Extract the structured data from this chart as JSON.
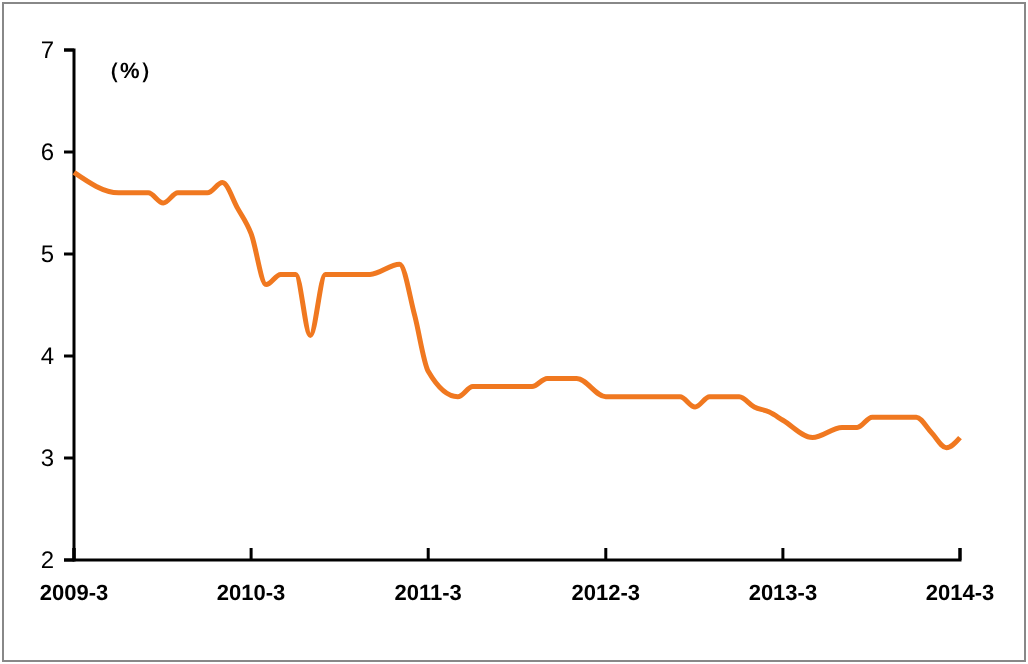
{
  "chart_data": {
    "type": "line",
    "ylabel": "（%）",
    "x": [
      "2009-03",
      "2009-06",
      "2009-08",
      "2009-09",
      "2009-10",
      "2009-12",
      "2010-01",
      "2010-02",
      "2010-03",
      "2010-04",
      "2010-05",
      "2010-06",
      "2010-07",
      "2010-08",
      "2010-11",
      "2011-01",
      "2011-02",
      "2011-03",
      "2011-05",
      "2011-06",
      "2011-10",
      "2011-11",
      "2012-01",
      "2012-03",
      "2012-08",
      "2012-09",
      "2012-10",
      "2012-12",
      "2013-01",
      "2013-02",
      "2013-03",
      "2013-05",
      "2013-07",
      "2013-08",
      "2013-09",
      "2013-11",
      "2013-12",
      "2014-01",
      "2014-02",
      "2014-03"
    ],
    "series": [
      {
        "color": "#f07820",
        "values": [
          5.8,
          5.6,
          5.6,
          5.5,
          5.6,
          5.6,
          5.7,
          5.45,
          5.2,
          4.7,
          4.8,
          4.8,
          4.2,
          4.8,
          4.8,
          4.9,
          4.4,
          3.85,
          3.6,
          3.7,
          3.7,
          3.78,
          3.78,
          3.6,
          3.6,
          3.5,
          3.6,
          3.6,
          3.5,
          3.45,
          3.37,
          3.2,
          3.3,
          3.3,
          3.4,
          3.4,
          3.4,
          3.25,
          3.1,
          3.2
        ]
      }
    ],
    "xlim": [
      "2009-03",
      "2014-03"
    ],
    "xticks": [
      {
        "value": "2009-03",
        "label": "2009-3"
      },
      {
        "value": "2010-03",
        "label": "2010-3"
      },
      {
        "value": "2011-03",
        "label": "2011-3"
      },
      {
        "value": "2012-03",
        "label": "2012-3"
      },
      {
        "value": "2013-03",
        "label": "2013-3"
      },
      {
        "value": "2014-03",
        "label": "2014-3"
      }
    ],
    "ylim": [
      2,
      7
    ],
    "yticks": [
      2,
      3,
      4,
      5,
      6,
      7
    ],
    "grid": false,
    "marker": "none",
    "line_style": "solid"
  }
}
